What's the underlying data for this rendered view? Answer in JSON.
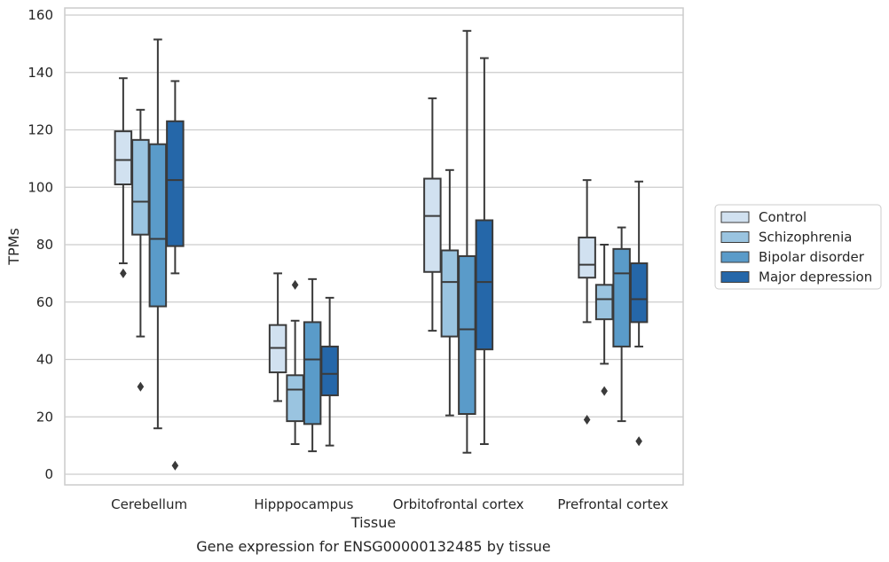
{
  "chart_data": {
    "type": "box",
    "title": "",
    "caption": "Gene expression for ENSG00000132485 by tissue",
    "xlabel": "Tissue",
    "ylabel": "TPMs",
    "ylim": [
      -4,
      161
    ],
    "yticks": [
      0,
      20,
      40,
      60,
      80,
      100,
      120,
      140,
      160
    ],
    "grid": "horizontal",
    "legend_position": "right",
    "categories": [
      "Cerebellum",
      "Hipppocampus",
      "Orbitofrontal cortex",
      "Prefrontal cortex"
    ],
    "series": [
      {
        "name": "Control",
        "color": "#d1e1f0",
        "boxes": [
          {
            "whisker_low": 73.5,
            "q1": 101,
            "median": 109.5,
            "q3": 119.5,
            "whisker_high": 138,
            "outliers": [
              70
            ]
          },
          {
            "whisker_low": 25.5,
            "q1": 35.5,
            "median": 44,
            "q3": 52,
            "whisker_high": 70,
            "outliers": []
          },
          {
            "whisker_low": 50,
            "q1": 70.5,
            "median": 90,
            "q3": 103,
            "whisker_high": 131,
            "outliers": []
          },
          {
            "whisker_low": 53,
            "q1": 68.5,
            "median": 73,
            "q3": 82.5,
            "whisker_high": 102.5,
            "outliers": [
              19
            ]
          }
        ]
      },
      {
        "name": "Schizophrenia",
        "color": "#9ac4e0",
        "boxes": [
          {
            "whisker_low": 48,
            "q1": 83.5,
            "median": 95,
            "q3": 116.5,
            "whisker_high": 127,
            "outliers": [
              30.5
            ]
          },
          {
            "whisker_low": 10.5,
            "q1": 18.5,
            "median": 29.5,
            "q3": 34.5,
            "whisker_high": 53.5,
            "outliers": [
              66
            ]
          },
          {
            "whisker_low": 20.5,
            "q1": 48,
            "median": 67,
            "q3": 78,
            "whisker_high": 106,
            "outliers": []
          },
          {
            "whisker_low": 38.5,
            "q1": 54,
            "median": 61,
            "q3": 66,
            "whisker_high": 80,
            "outliers": [
              29
            ]
          }
        ]
      },
      {
        "name": "Bipolar disorder",
        "color": "#5a9bc9",
        "boxes": [
          {
            "whisker_low": 16,
            "q1": 58.5,
            "median": 82,
            "q3": 115,
            "whisker_high": 151.5,
            "outliers": []
          },
          {
            "whisker_low": 8,
            "q1": 17.5,
            "median": 40,
            "q3": 53,
            "whisker_high": 68,
            "outliers": []
          },
          {
            "whisker_low": 7.5,
            "q1": 21,
            "median": 50.5,
            "q3": 76,
            "whisker_high": 154.5,
            "outliers": []
          },
          {
            "whisker_low": 18.5,
            "q1": 44.5,
            "median": 70,
            "q3": 78.5,
            "whisker_high": 86,
            "outliers": []
          }
        ]
      },
      {
        "name": "Major depression",
        "color": "#2567a9",
        "boxes": [
          {
            "whisker_low": 70,
            "q1": 79.5,
            "median": 102.5,
            "q3": 123,
            "whisker_high": 137,
            "outliers": [
              3
            ]
          },
          {
            "whisker_low": 10,
            "q1": 27.5,
            "median": 35,
            "q3": 44.5,
            "whisker_high": 61.5,
            "outliers": []
          },
          {
            "whisker_low": 10.5,
            "q1": 43.5,
            "median": 67,
            "q3": 88.5,
            "whisker_high": 145,
            "outliers": []
          },
          {
            "whisker_low": 44.5,
            "q1": 53,
            "median": 61,
            "q3": 73.5,
            "whisker_high": 102,
            "outliers": [
              11.5
            ]
          }
        ]
      }
    ]
  }
}
